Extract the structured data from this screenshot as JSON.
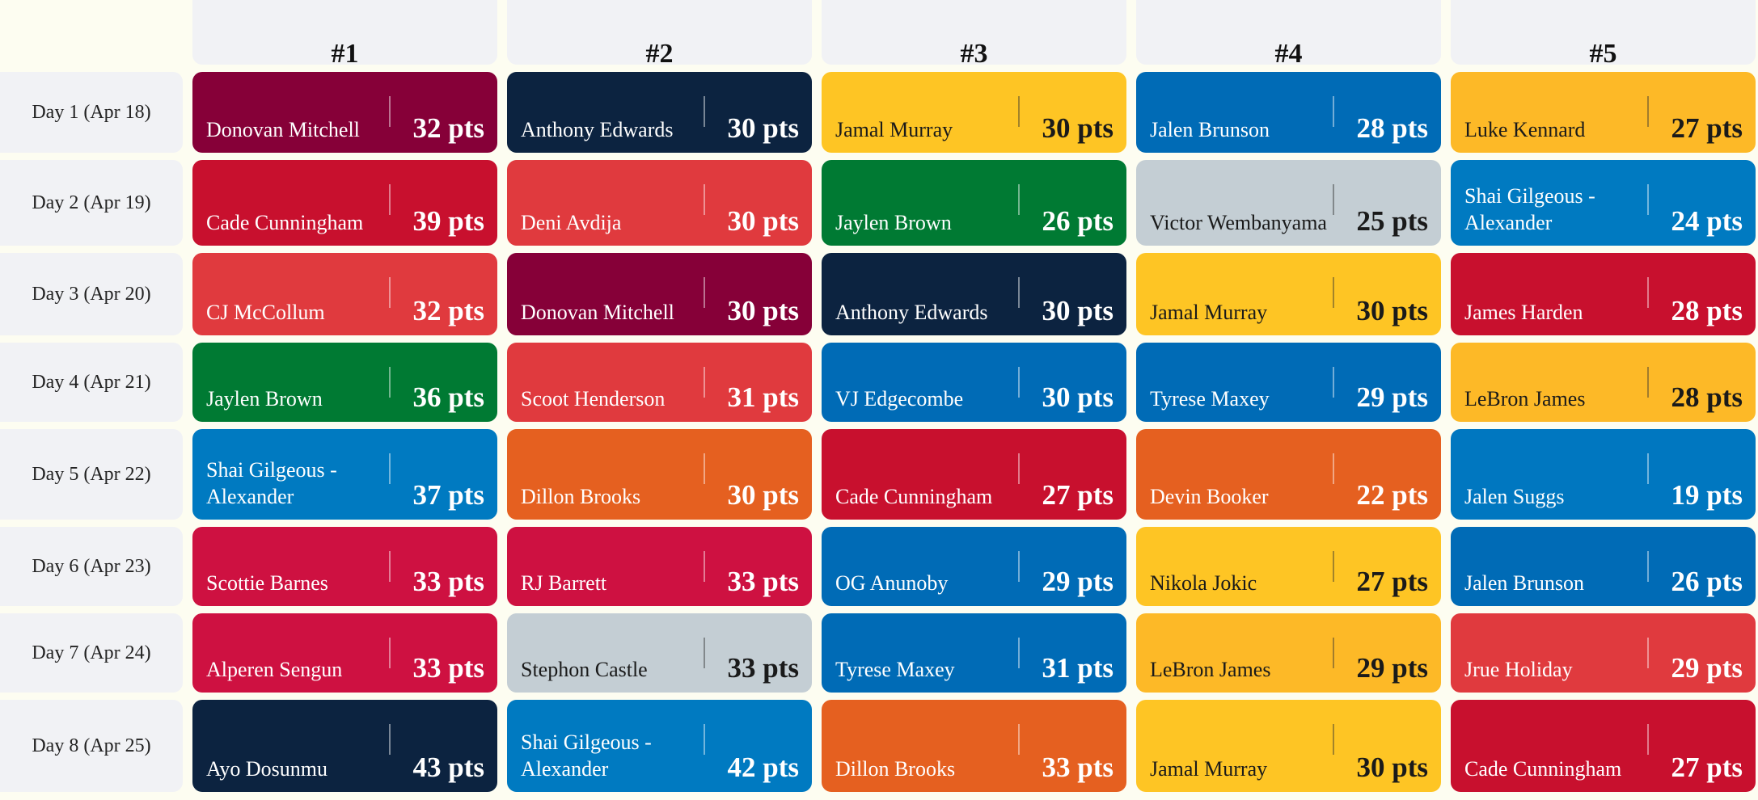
{
  "columns": [
    "#1",
    "#2",
    "#3",
    "#4",
    "#5"
  ],
  "days": [
    {
      "label": "Day 1 (Apr 18)",
      "entries": [
        {
          "player": "Donovan Mitchell",
          "pts": "32 pts",
          "color": "#860038",
          "text": "light"
        },
        {
          "player": "Anthony Edwards",
          "pts": "30 pts",
          "color": "#0c2340",
          "text": "light"
        },
        {
          "player": "Jamal  Murray",
          "pts": "30 pts",
          "color": "#fec524",
          "text": "dark"
        },
        {
          "player": "Jalen  Brunson",
          "pts": "28 pts",
          "color": "#006bb6",
          "text": "light"
        },
        {
          "player": "Luke Kennard",
          "pts": "27 pts",
          "color": "#fdb927",
          "text": "dark"
        }
      ]
    },
    {
      "label": "Day 2 (Apr 19)",
      "entries": [
        {
          "player": "Cade Cunningham",
          "pts": "39 pts",
          "color": "#c8102e",
          "text": "light"
        },
        {
          "player": "Deni  Avdija",
          "pts": "30 pts",
          "color": "#e03a3e",
          "text": "light"
        },
        {
          "player": "Jaylen  Brown",
          "pts": "26 pts",
          "color": "#007a33",
          "text": "light"
        },
        {
          "player": "Victor Wembanyama",
          "pts": "25 pts",
          "color": "#c4ced4",
          "text": "dark"
        },
        {
          "player": "Shai  Gilgeous -Alexander",
          "pts": "24 pts",
          "color": "#007ac1",
          "text": "light"
        }
      ]
    },
    {
      "label": "Day 3 (Apr 20)",
      "entries": [
        {
          "player": "CJ McCollum",
          "pts": "32 pts",
          "color": "#e03a3e",
          "text": "light"
        },
        {
          "player": "Donovan Mitchell",
          "pts": "30 pts",
          "color": "#860038",
          "text": "light"
        },
        {
          "player": "Anthony Edwards",
          "pts": "30 pts",
          "color": "#0c2340",
          "text": "light"
        },
        {
          "player": "Jamal  Murray",
          "pts": "30 pts",
          "color": "#fec524",
          "text": "dark"
        },
        {
          "player": "James  Harden",
          "pts": "28 pts",
          "color": "#c8102e",
          "text": "light"
        }
      ]
    },
    {
      "label": "Day 4 (Apr 21)",
      "entries": [
        {
          "player": "Jaylen  Brown",
          "pts": "36 pts",
          "color": "#007a33",
          "text": "light"
        },
        {
          "player": "Scoot Henderson",
          "pts": "31 pts",
          "color": "#e03a3e",
          "text": "light"
        },
        {
          "player": "VJ  Edgecombe",
          "pts": "30 pts",
          "color": "#006bb6",
          "text": "light"
        },
        {
          "player": "Tyrese  Maxey",
          "pts": "29 pts",
          "color": "#006bb6",
          "text": "light"
        },
        {
          "player": "LeBron James",
          "pts": "28 pts",
          "color": "#fdb927",
          "text": "dark"
        }
      ]
    },
    {
      "label": "Day 5 (Apr 22)",
      "entries": [
        {
          "player": "Shai  Gilgeous -Alexander",
          "pts": "37 pts",
          "color": "#007ac1",
          "text": "light"
        },
        {
          "player": "Dillon Brooks",
          "pts": "30 pts",
          "color": "#e56020",
          "text": "light"
        },
        {
          "player": "Cade Cunningham",
          "pts": "27 pts",
          "color": "#c8102e",
          "text": "light"
        },
        {
          "player": "Devin  Booker",
          "pts": "22 pts",
          "color": "#e56020",
          "text": "light"
        },
        {
          "player": "Jalen  Suggs",
          "pts": "19 pts",
          "color": "#0077c0",
          "text": "light"
        }
      ]
    },
    {
      "label": "Day 6 (Apr 23)",
      "entries": [
        {
          "player": "Scottie  Barnes",
          "pts": "33 pts",
          "color": "#ce1141",
          "text": "light"
        },
        {
          "player": "RJ Barrett",
          "pts": "33 pts",
          "color": "#ce1141",
          "text": "light"
        },
        {
          "player": "OG Anunoby",
          "pts": "29 pts",
          "color": "#006bb6",
          "text": "light"
        },
        {
          "player": "Nikola Jokic",
          "pts": "27 pts",
          "color": "#fec524",
          "text": "dark"
        },
        {
          "player": "Jalen  Brunson",
          "pts": "26 pts",
          "color": "#006bb6",
          "text": "light"
        }
      ]
    },
    {
      "label": "Day 7 (Apr 24)",
      "entries": [
        {
          "player": "Alperen  Sengun",
          "pts": "33 pts",
          "color": "#ce1141",
          "text": "light"
        },
        {
          "player": "Stephon Castle",
          "pts": "33 pts",
          "color": "#c4ced4",
          "text": "dark"
        },
        {
          "player": "Tyrese  Maxey",
          "pts": "31 pts",
          "color": "#006bb6",
          "text": "light"
        },
        {
          "player": "LeBron James",
          "pts": "29 pts",
          "color": "#fdb927",
          "text": "dark"
        },
        {
          "player": "Jrue Holiday",
          "pts": "29 pts",
          "color": "#e03a3e",
          "text": "light"
        }
      ]
    },
    {
      "label": "Day 8 (Apr 25)",
      "entries": [
        {
          "player": "Ayo Dosunmu",
          "pts": "43 pts",
          "color": "#0c2340",
          "text": "light"
        },
        {
          "player": "Shai  Gilgeous -Alexander",
          "pts": "42 pts",
          "color": "#007ac1",
          "text": "light"
        },
        {
          "player": "Dillon Brooks",
          "pts": "33 pts",
          "color": "#e56020",
          "text": "light"
        },
        {
          "player": "Jamal  Murray",
          "pts": "30 pts",
          "color": "#fec524",
          "text": "dark"
        },
        {
          "player": "Cade Cunningham",
          "pts": "27 pts",
          "color": "#c8102e",
          "text": "light"
        }
      ]
    }
  ]
}
